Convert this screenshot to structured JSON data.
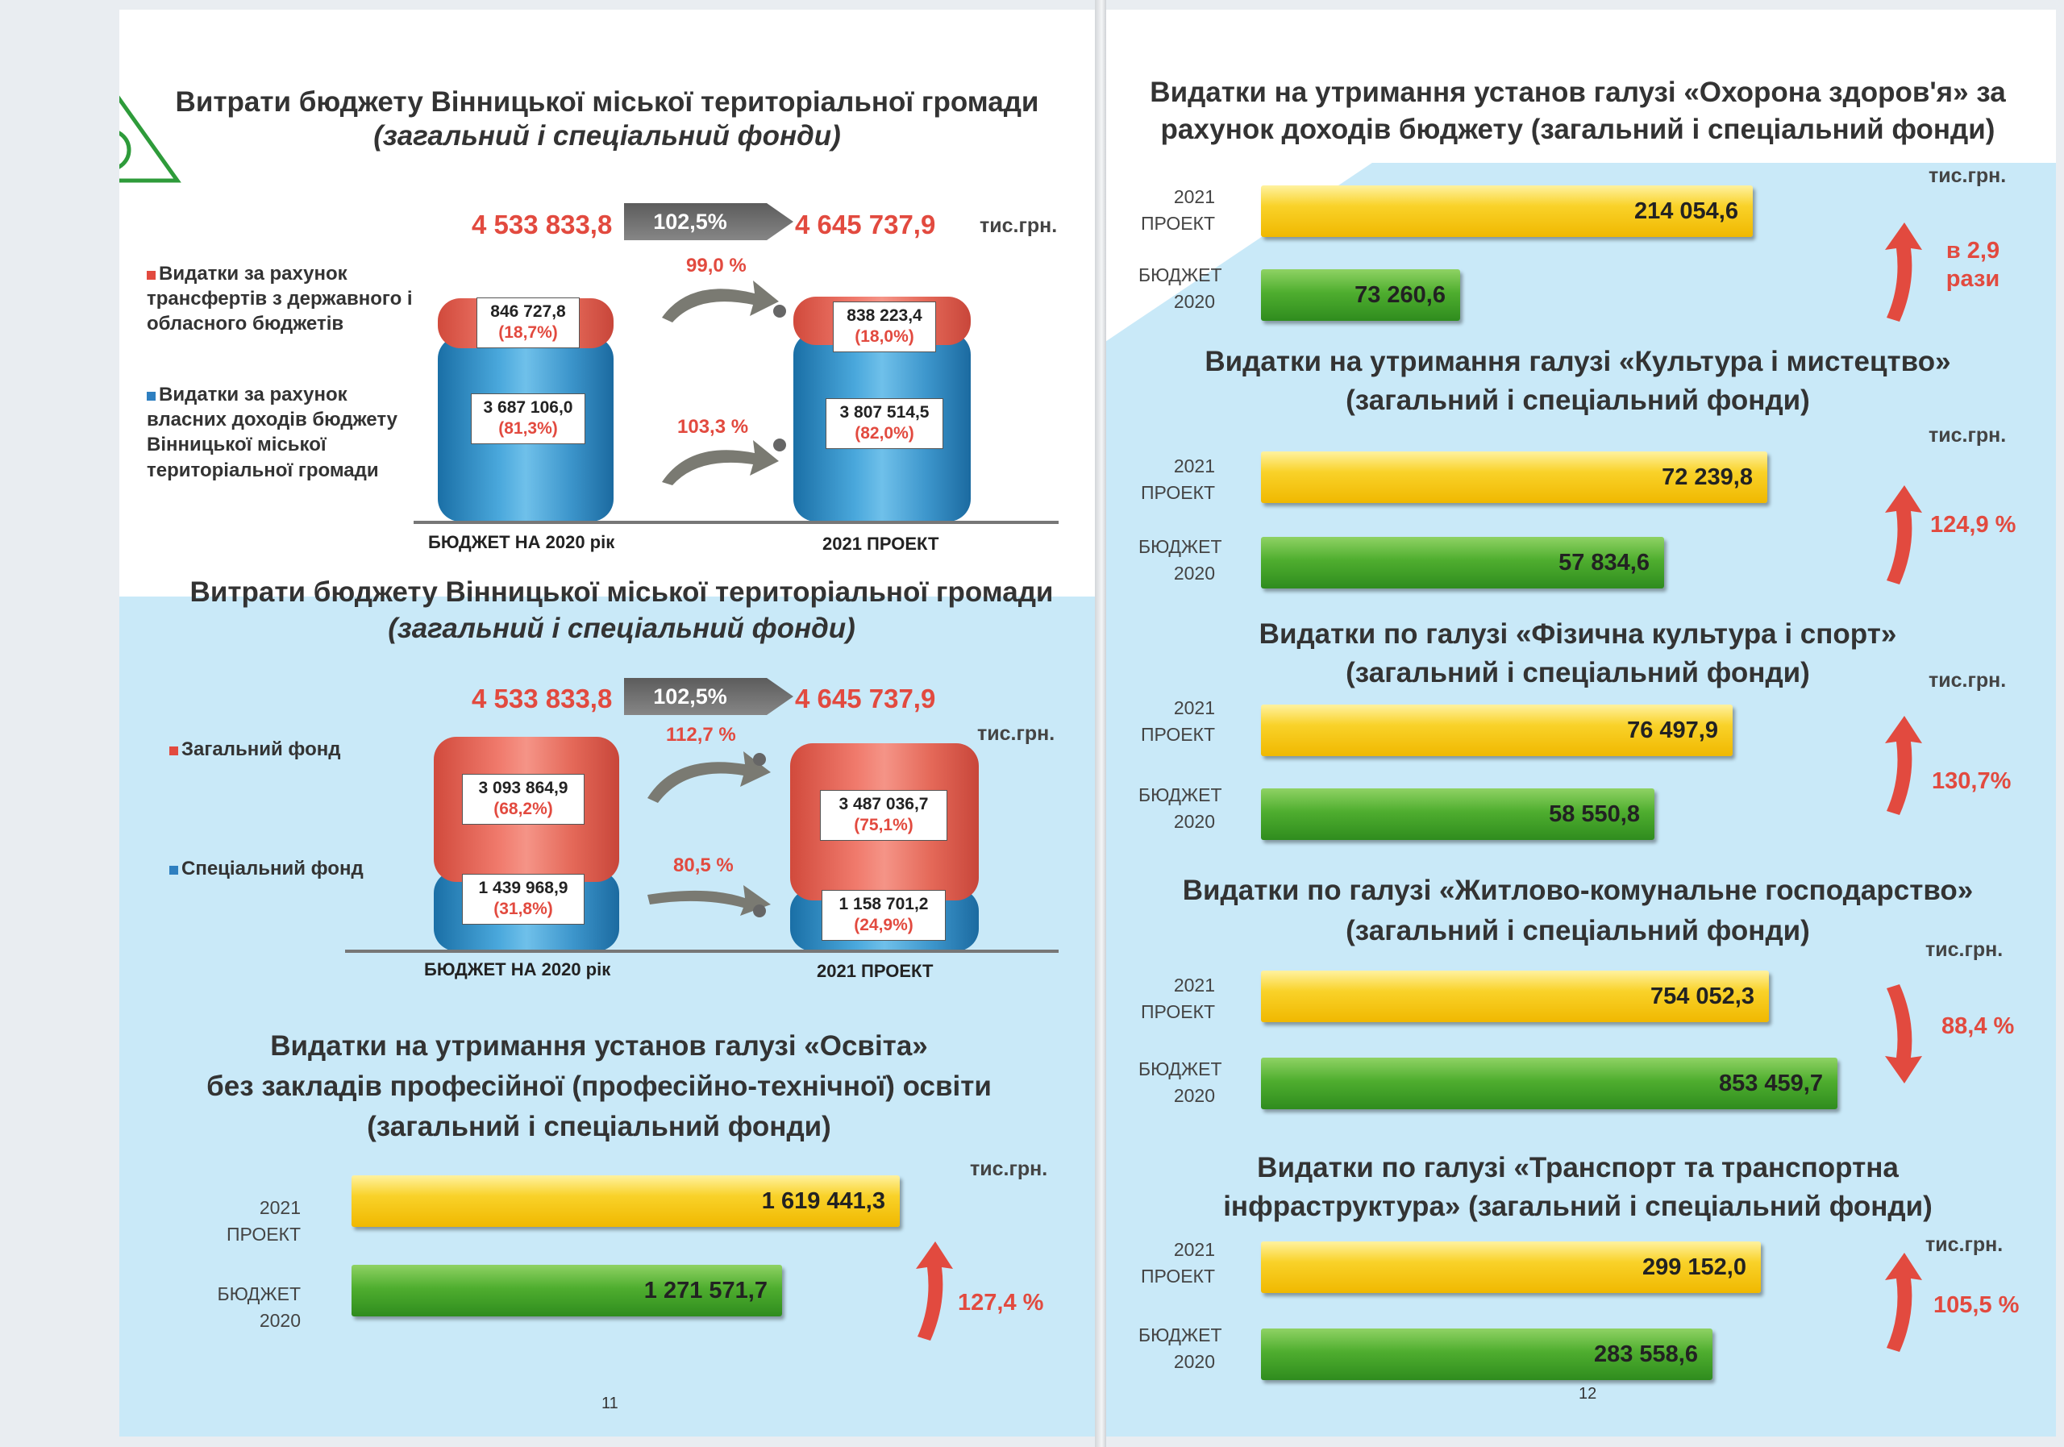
{
  "left": {
    "chart1": {
      "title": "Витрати бюджету Вінницької міської територіальної громади",
      "subtitle": "(загальний і спеціальний фонди)",
      "total_2020": "4 533 833,8",
      "growth": "102,5%",
      "total_2021": "4 645 737,9",
      "unit": "тис.грн.",
      "legend_red": "Видатки за рахунок трансфертів з державного і обласного бюджетів",
      "legend_blue": "Видатки за рахунок власних доходів бюджету Вінницької міської територіальної громади",
      "top_2020": "846 727,8",
      "top_2020_pct": "(18,7%)",
      "bottom_2020": "3 687 106,0",
      "bottom_2020_pct": "(81,3%)",
      "top_2021": "838 223,4",
      "top_2021_pct": "(18,0%)",
      "bottom_2021": "3 807 514,5",
      "bottom_2021_pct": "(82,0%)",
      "pct_top": "99,0 %",
      "pct_bottom": "103,3 %",
      "cap_2020": "БЮДЖЕТ НА 2020 рік",
      "cap_2021": "2021 ПРОЕКТ"
    },
    "chart2": {
      "title": "Витрати бюджету Вінницької міської територіальної громади",
      "subtitle": "(загальний і спеціальний фонди)",
      "total_2020": "4 533 833,8",
      "growth": "102,5%",
      "total_2021": "4 645 737,9",
      "unit": "тис.грн.",
      "legend_red": "Загальний фонд",
      "legend_blue": "Спеціальний фонд",
      "top_2020": "3 093 864,9",
      "top_2020_pct": "(68,2%)",
      "bottom_2020": "1 439 968,9",
      "bottom_2020_pct": "(31,8%)",
      "top_2021": "3 487 036,7",
      "top_2021_pct": "(75,1%)",
      "bottom_2021": "1 158 701,2",
      "bottom_2021_pct": "(24,9%)",
      "pct_top": "112,7 %",
      "pct_bottom": "80,5 %",
      "cap_2020": "БЮДЖЕТ НА 2020 рік",
      "cap_2021": "2021 ПРОЕКТ"
    },
    "edu": {
      "title1": "Видатки на утримання установ галузі «Освіта»",
      "title2": "без закладів професійної (професійно-технічної) освіти",
      "title3": "(загальний і спеціальний фонди)",
      "unit": "тис.грн.",
      "label_2021": "2021 ПРОЕКТ",
      "value_2021": "1 619 441,3",
      "label_2020": "БЮДЖЕТ 2020",
      "value_2020": "1 271 571,7",
      "change": "127,4 %"
    },
    "page_number": "11"
  },
  "right": {
    "health": {
      "title1": "Видатки на утримання установ галузі «Охорона здоров'я» за",
      "title2": "рахунок доходів бюджету (загальний і спеціальний фонди)",
      "unit": "тис.грн.",
      "label_2021": "2021 ПРОЕКТ",
      "value_2021": "214 054,6",
      "label_2020": "БЮДЖЕТ 2020",
      "value_2020": "73 260,6",
      "change": "в 2,9 рази"
    },
    "culture": {
      "title1": "Видатки на утримання галузі «Культура і мистецтво»",
      "title2": "(загальний  і спеціальний фонди)",
      "unit": "тис.грн.",
      "label_2021": "2021 ПРОЕКТ",
      "value_2021": "72 239,8",
      "label_2020": "БЮДЖЕТ 2020",
      "value_2020": "57 834,6",
      "change": "124,9 %"
    },
    "sport": {
      "title1": "Видатки по галузі «Фізична культура і спорт»",
      "title2": "(загальний і спеціальний фонди)",
      "unit": "тис.грн.",
      "label_2021": "2021 ПРОЕКТ",
      "value_2021": "76 497,9",
      "label_2020": "БЮДЖЕТ 2020",
      "value_2020": "58 550,8",
      "change": "130,7%"
    },
    "housing": {
      "title1": "Видатки по галузі «Житлово-комунальне господарство»",
      "title2": "(загальний і спеціальний фонди)",
      "unit": "тис.грн.",
      "label_2021": "2021 ПРОЕКТ",
      "value_2021": "754 052,3",
      "label_2020": "БЮДЖЕТ 2020",
      "value_2020": "853 459,7",
      "change": "88,4 %"
    },
    "transport": {
      "title1": "Видатки по галузі «Транспорт та транспортна",
      "title2": "інфраструктура» (загальний і спеціальний фонди)",
      "unit": "тис.грн.",
      "label_2021": "2021 ПРОЕКТ",
      "value_2021": "299 152,0",
      "label_2020": "БЮДЖЕТ 2020",
      "value_2020": "283 558,6",
      "change": "105,5 %"
    },
    "page_number": "12"
  },
  "colors": {
    "accent_red": "#e24a3f",
    "bar_yellow": "#f9d229",
    "bar_green": "#4fae2f",
    "cyl_blue": "#4aa8dc",
    "cyl_red": "#f07a6c",
    "bg_blue": "#c9e9f8"
  },
  "icons": [
    "logo-triangle-icon",
    "arrow-right-icon",
    "arrow-up-icon",
    "arrow-down-icon"
  ],
  "chart_data": [
    {
      "type": "bar",
      "title": "Витрати бюджету Вінницької міської територіальної громади",
      "categories": [
        "БЮДЖЕТ НА 2020 рік",
        "2021 ПРОЕКТ"
      ],
      "series": [
        {
          "name": "Видатки за рахунок трансфертів з державного і обласного бюджетів",
          "values": [
            846727.8,
            838223.4
          ]
        },
        {
          "name": "Видатки за рахунок власних доходів бюджету Вінницької міської територіальної громади",
          "values": [
            3687106.0,
            3807514.5
          ]
        }
      ]
    },
    {
      "type": "bar",
      "title": "Витрати бюджету Вінницької міської територіальної громади",
      "categories": [
        "БЮДЖЕТ НА 2020 рік",
        "2021 ПРОЕКТ"
      ],
      "series": [
        {
          "name": "Загальний фонд",
          "values": [
            3093864.9,
            3487036.7
          ]
        },
        {
          "name": "Спеціальний фонд",
          "values": [
            1439968.9,
            1158701.2
          ]
        }
      ]
    },
    {
      "type": "bar",
      "categories": [
        "2021 ПРОЕКТ",
        "БЮДЖЕТ 2020"
      ],
      "values": [
        1619441.3,
        1271571.7
      ]
    },
    {
      "type": "bar",
      "categories": [
        "2021 ПРОЕКТ",
        "БЮДЖЕТ 2020"
      ],
      "values": [
        214054.6,
        73260.6
      ]
    },
    {
      "type": "bar",
      "categories": [
        "2021 ПРОЕКТ",
        "БЮДЖЕТ 2020"
      ],
      "values": [
        72239.8,
        57834.6
      ]
    },
    {
      "type": "bar",
      "categories": [
        "2021 ПРОЕКТ",
        "БЮДЖЕТ 2020"
      ],
      "values": [
        76497.9,
        58550.8
      ]
    },
    {
      "type": "bar",
      "categories": [
        "2021 ПРОЕКТ",
        "БЮДЖЕТ 2020"
      ],
      "values": [
        754052.3,
        853459.7
      ]
    },
    {
      "type": "bar",
      "categories": [
        "2021 ПРОЕКТ",
        "БЮДЖЕТ 2020"
      ],
      "values": [
        299152.0,
        283558.6
      ]
    }
  ]
}
